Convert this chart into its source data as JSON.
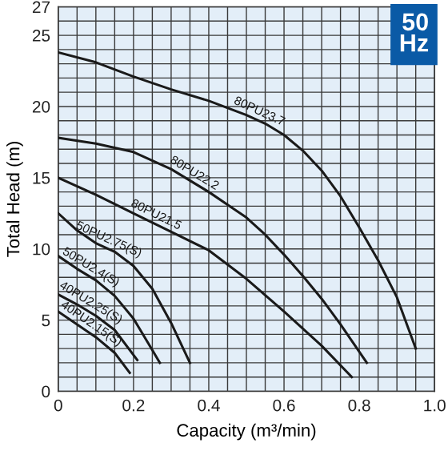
{
  "chart_data": {
    "type": "line",
    "xlabel": "Capacity (m³/min)",
    "ylabel": "Total Head (m)",
    "annotations": [
      "50 Hz"
    ],
    "xlim": [
      0,
      1.0
    ],
    "ylim": [
      0,
      27
    ],
    "xticks": [
      0,
      0.2,
      0.4,
      0.6,
      0.8,
      {
        "value": 1.0,
        "label": "1.0"
      }
    ],
    "yticks": [
      0,
      5,
      10,
      15,
      20,
      25,
      27
    ],
    "grid": true,
    "marker": "none",
    "line_style": "solid",
    "legend": false,
    "series": [
      {
        "name": "80PU23.7",
        "color": "#1a1a1a",
        "x": [
          0,
          0.1,
          0.2,
          0.3,
          0.4,
          0.5,
          0.55,
          0.6,
          0.65,
          0.7,
          0.75,
          0.8,
          0.85,
          0.9,
          0.95
        ],
        "values": [
          23.8,
          23.1,
          22.1,
          21.2,
          20.4,
          19.4,
          18.8,
          18,
          16.9,
          15.5,
          13.7,
          11.5,
          9.2,
          6.6,
          3
        ]
      },
      {
        "name": "80PU22.2",
        "color": "#1a1a1a",
        "x": [
          0,
          0.1,
          0.2,
          0.3,
          0.4,
          0.5,
          0.55,
          0.6,
          0.65,
          0.7,
          0.75,
          0.82
        ],
        "values": [
          17.8,
          17.4,
          16.8,
          15.6,
          14,
          12.2,
          11,
          9.6,
          8.1,
          6.5,
          4.7,
          2
        ]
      },
      {
        "name": "80PU21.5",
        "color": "#1a1a1a",
        "x": [
          0,
          0.1,
          0.2,
          0.3,
          0.4,
          0.5,
          0.6,
          0.7,
          0.78
        ],
        "values": [
          15,
          13.8,
          12.5,
          11.2,
          9.9,
          7.9,
          5.6,
          3.2,
          1
        ]
      },
      {
        "name": "50PU2.75(S)",
        "color": "#1a1a1a",
        "x": [
          0,
          0.05,
          0.1,
          0.15,
          0.2,
          0.25,
          0.3,
          0.35
        ],
        "values": [
          12.5,
          11.3,
          10.4,
          9.8,
          8.8,
          7.2,
          4.8,
          2
        ]
      },
      {
        "name": "50PU2.4(S)",
        "color": "#1a1a1a",
        "x": [
          0,
          0.05,
          0.1,
          0.15,
          0.2,
          0.25,
          0.27
        ],
        "values": [
          9.5,
          8.6,
          7.8,
          6.7,
          5.1,
          2.9,
          2
        ]
      },
      {
        "name": "40PU2.25(S)",
        "color": "#1a1a1a",
        "x": [
          0,
          0.05,
          0.1,
          0.15,
          0.21
        ],
        "values": [
          6.8,
          6.1,
          5.3,
          4.3,
          2.2
        ]
      },
      {
        "name": "40PU2.15(S)",
        "color": "#1a1a1a",
        "x": [
          0,
          0.05,
          0.1,
          0.15,
          0.19
        ],
        "values": [
          5.6,
          4.7,
          3.8,
          2.7,
          1.3
        ]
      }
    ]
  }
}
